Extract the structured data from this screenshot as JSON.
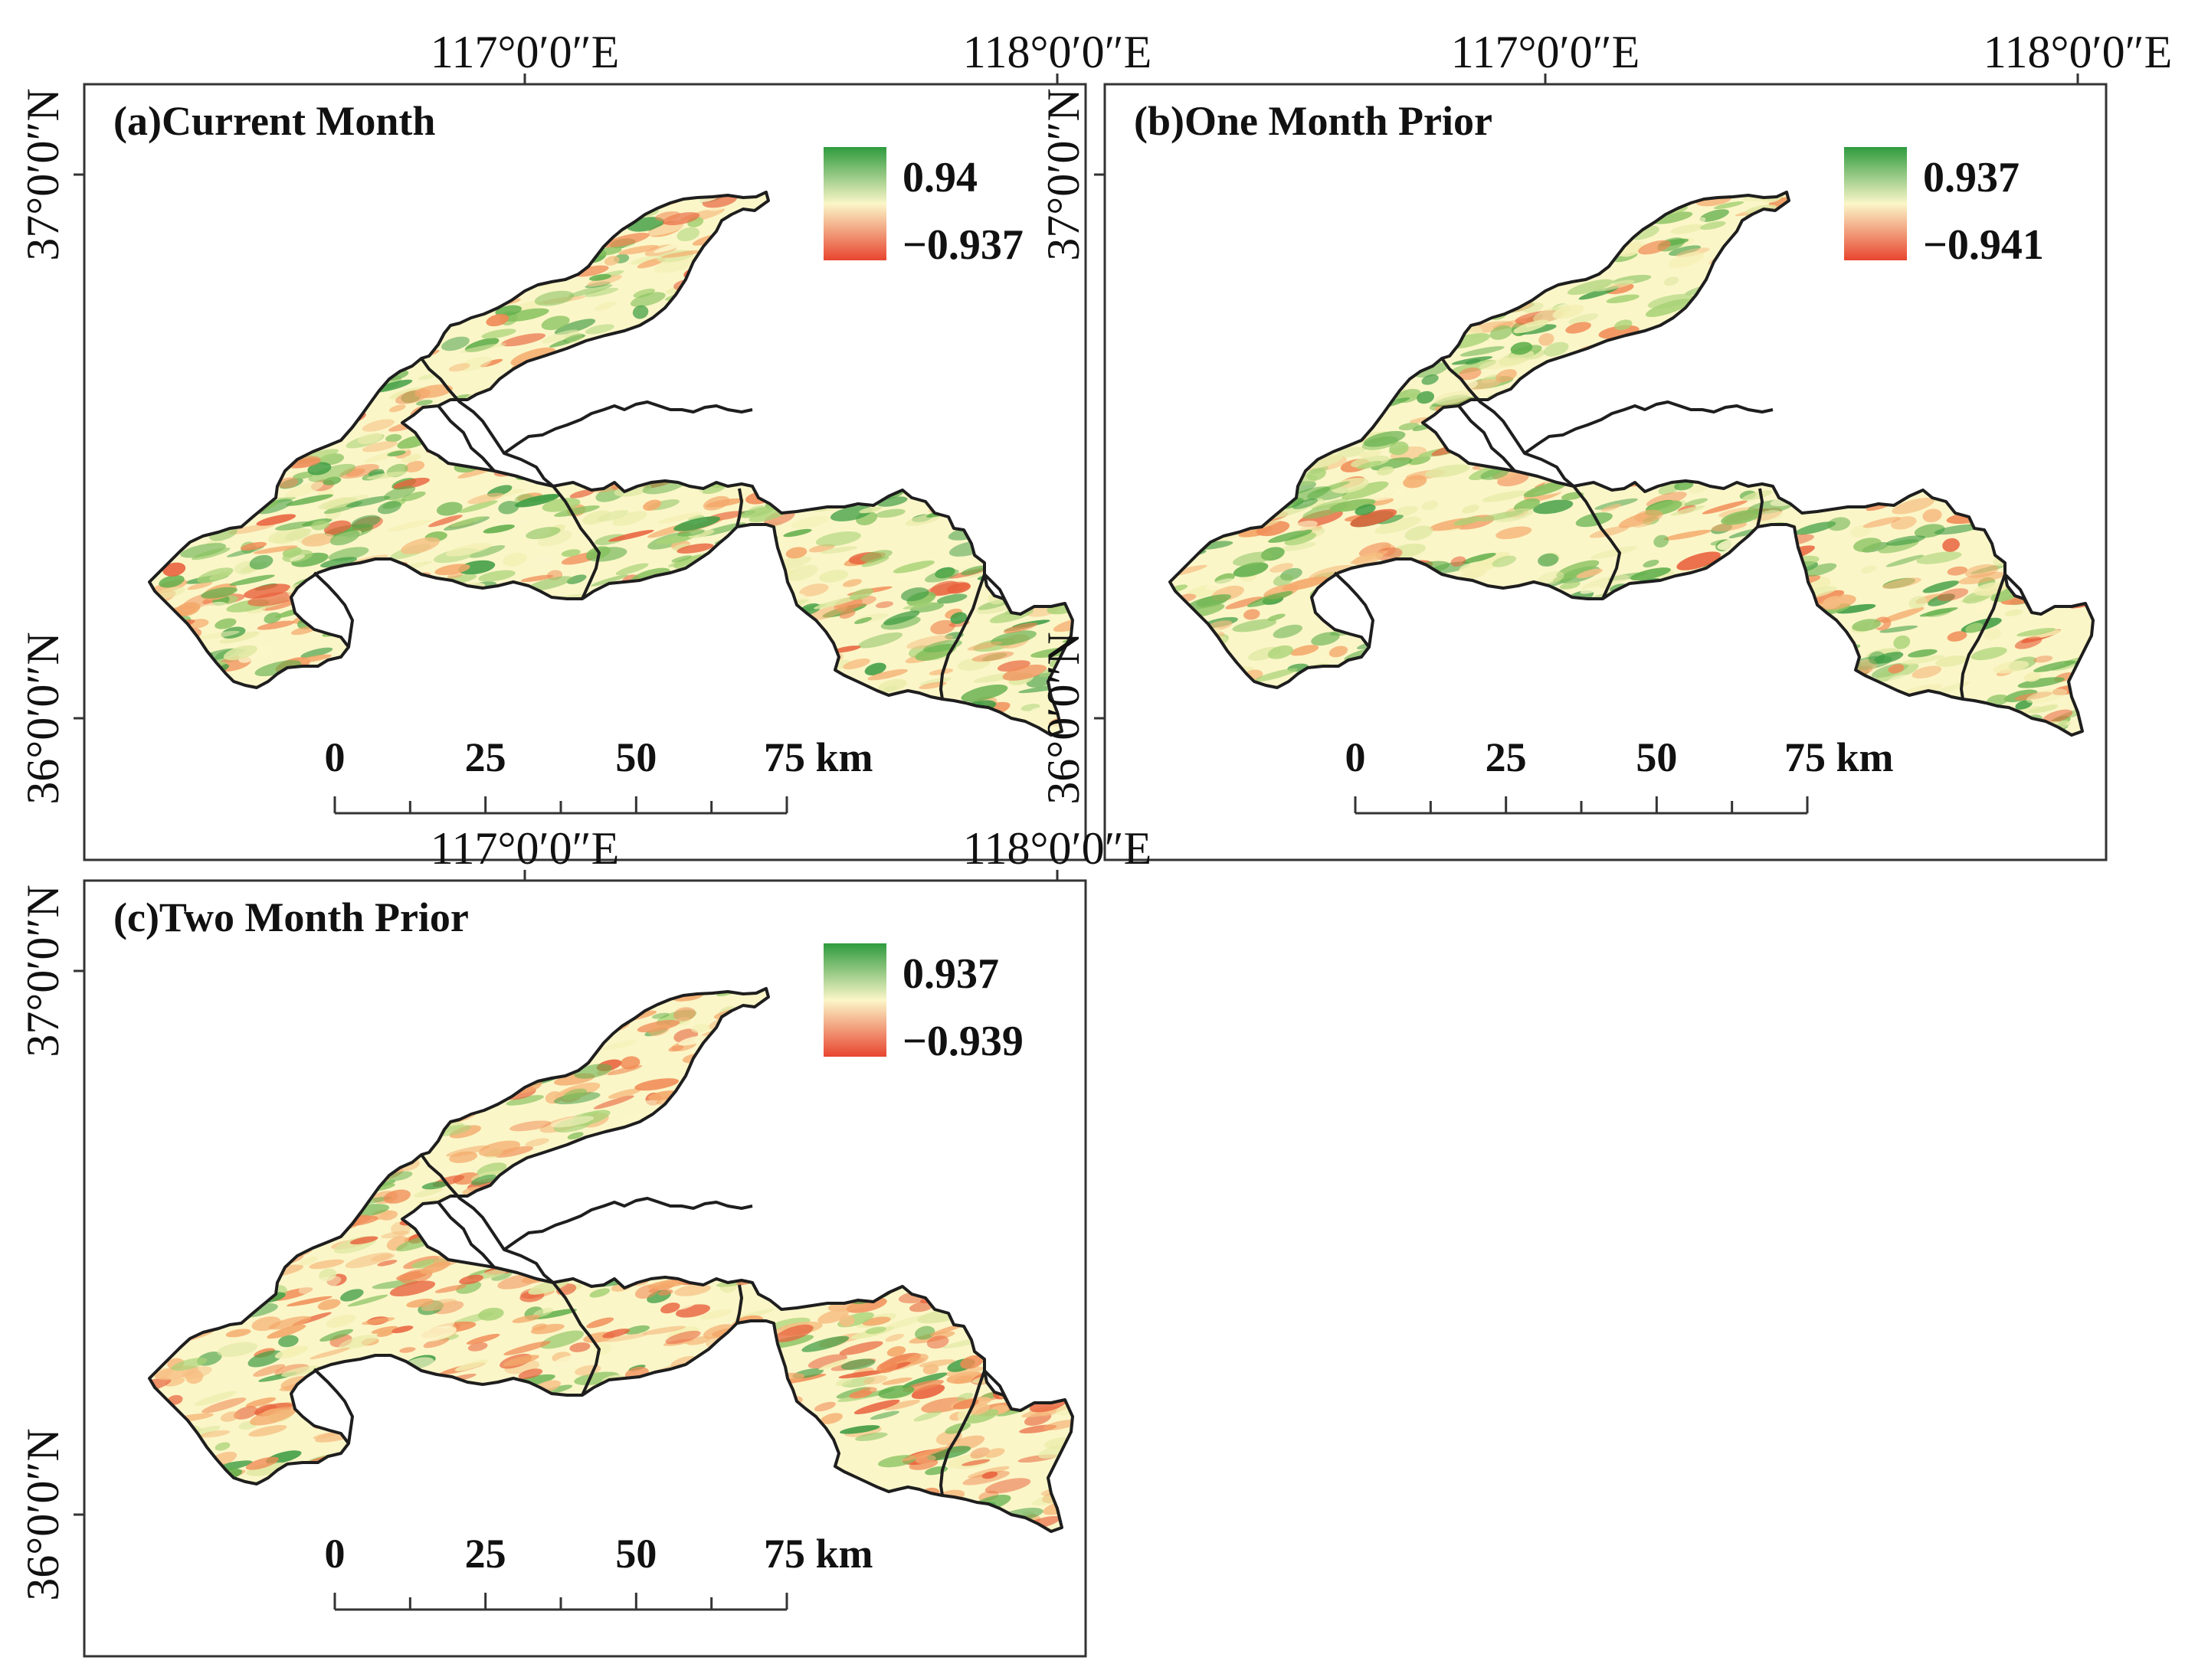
{
  "colors": {
    "high": "#2e9b3e",
    "mid": "#fbf6c8",
    "low": "#e8452f",
    "boundary": "#1e1e1e",
    "frame": "#333333"
  },
  "axes": {
    "lon_labels": [
      "117°0′0″E",
      "118°0′0″E"
    ],
    "lat_labels": [
      "37°0′0″N",
      "36°0′0″N"
    ]
  },
  "scale_bar": {
    "labels": [
      "0",
      "25",
      "50",
      "75 km"
    ]
  },
  "panels": [
    {
      "title": "(a)Current Month",
      "legend": {
        "max": "0.94",
        "min": "−0.937"
      },
      "tone_mix": {
        "green": 0.48,
        "red": 0.3
      }
    },
    {
      "title": "(b)One Month Prior",
      "legend": {
        "max": "0.937",
        "min": "−0.941"
      },
      "tone_mix": {
        "green": 0.45,
        "red": 0.28
      }
    },
    {
      "title": "(c)Two Month Prior",
      "legend": {
        "max": "0.937",
        "min": "−0.939"
      },
      "tone_mix": {
        "green": 0.22,
        "red": 0.62
      }
    }
  ]
}
